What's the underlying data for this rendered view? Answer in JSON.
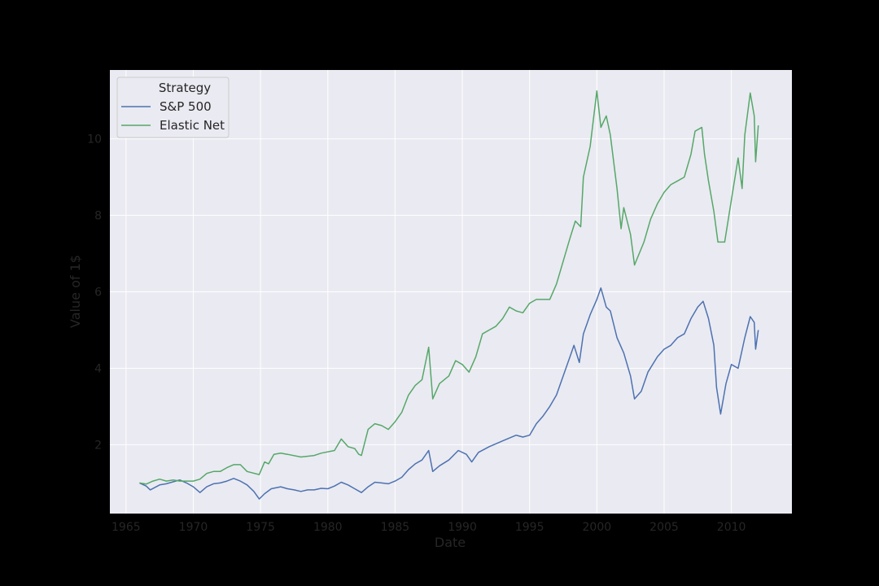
{
  "chart_data": {
    "type": "line",
    "title": "",
    "xlabel": "Date",
    "ylabel": "Value of 1$",
    "xlim": [
      1963.8,
      2014.5
    ],
    "ylim": [
      0.2,
      11.8
    ],
    "x_ticks": [
      1965,
      1970,
      1975,
      1980,
      1985,
      1990,
      1995,
      2000,
      2005,
      2010
    ],
    "y_ticks": [
      2,
      4,
      6,
      8,
      10
    ],
    "grid": true,
    "legend": {
      "title": "Strategy",
      "placement": "top-left"
    },
    "colors": {
      "background": "#000000",
      "plot_area": "#EAEAF2",
      "grid": "#FFFFFF",
      "axis_text": "#262626"
    },
    "series": [
      {
        "name": "S&P 500",
        "color": "#4C72B0",
        "points": [
          [
            1966.0,
            1.0
          ],
          [
            1966.5,
            0.92
          ],
          [
            1966.8,
            0.82
          ],
          [
            1967.5,
            0.95
          ],
          [
            1968.0,
            0.98
          ],
          [
            1968.5,
            1.03
          ],
          [
            1969.0,
            1.08
          ],
          [
            1969.5,
            1.0
          ],
          [
            1970.0,
            0.9
          ],
          [
            1970.5,
            0.75
          ],
          [
            1971.0,
            0.9
          ],
          [
            1971.5,
            0.98
          ],
          [
            1972.0,
            1.0
          ],
          [
            1972.5,
            1.05
          ],
          [
            1973.0,
            1.12
          ],
          [
            1973.5,
            1.05
          ],
          [
            1974.0,
            0.95
          ],
          [
            1974.5,
            0.78
          ],
          [
            1974.9,
            0.58
          ],
          [
            1975.3,
            0.72
          ],
          [
            1975.8,
            0.85
          ],
          [
            1976.5,
            0.9
          ],
          [
            1977.0,
            0.85
          ],
          [
            1977.5,
            0.82
          ],
          [
            1978.0,
            0.78
          ],
          [
            1978.5,
            0.82
          ],
          [
            1979.0,
            0.82
          ],
          [
            1979.5,
            0.86
          ],
          [
            1980.0,
            0.85
          ],
          [
            1980.5,
            0.92
          ],
          [
            1981.0,
            1.02
          ],
          [
            1981.5,
            0.95
          ],
          [
            1982.0,
            0.85
          ],
          [
            1982.5,
            0.75
          ],
          [
            1983.0,
            0.9
          ],
          [
            1983.5,
            1.02
          ],
          [
            1984.0,
            1.0
          ],
          [
            1984.5,
            0.98
          ],
          [
            1985.0,
            1.05
          ],
          [
            1985.5,
            1.15
          ],
          [
            1986.0,
            1.35
          ],
          [
            1986.5,
            1.5
          ],
          [
            1987.0,
            1.6
          ],
          [
            1987.5,
            1.85
          ],
          [
            1987.8,
            1.3
          ],
          [
            1988.3,
            1.45
          ],
          [
            1989.0,
            1.6
          ],
          [
            1989.7,
            1.85
          ],
          [
            1990.3,
            1.75
          ],
          [
            1990.7,
            1.55
          ],
          [
            1991.2,
            1.8
          ],
          [
            1992.0,
            1.95
          ],
          [
            1993.0,
            2.1
          ],
          [
            1994.0,
            2.25
          ],
          [
            1994.5,
            2.2
          ],
          [
            1995.0,
            2.25
          ],
          [
            1995.5,
            2.55
          ],
          [
            1996.0,
            2.75
          ],
          [
            1996.5,
            3.0
          ],
          [
            1997.0,
            3.3
          ],
          [
            1997.5,
            3.8
          ],
          [
            1998.0,
            4.3
          ],
          [
            1998.3,
            4.6
          ],
          [
            1998.7,
            4.15
          ],
          [
            1999.0,
            4.9
          ],
          [
            1999.5,
            5.4
          ],
          [
            2000.0,
            5.8
          ],
          [
            2000.3,
            6.1
          ],
          [
            2000.7,
            5.6
          ],
          [
            2001.0,
            5.5
          ],
          [
            2001.5,
            4.8
          ],
          [
            2002.0,
            4.4
          ],
          [
            2002.5,
            3.8
          ],
          [
            2002.8,
            3.2
          ],
          [
            2003.3,
            3.4
          ],
          [
            2003.8,
            3.9
          ],
          [
            2004.5,
            4.3
          ],
          [
            2005.0,
            4.5
          ],
          [
            2005.5,
            4.6
          ],
          [
            2006.0,
            4.8
          ],
          [
            2006.5,
            4.9
          ],
          [
            2007.0,
            5.3
          ],
          [
            2007.5,
            5.6
          ],
          [
            2007.9,
            5.75
          ],
          [
            2008.3,
            5.3
          ],
          [
            2008.7,
            4.6
          ],
          [
            2008.9,
            3.5
          ],
          [
            2009.2,
            2.8
          ],
          [
            2009.6,
            3.6
          ],
          [
            2010.0,
            4.1
          ],
          [
            2010.5,
            4.0
          ],
          [
            2011.0,
            4.8
          ],
          [
            2011.4,
            5.35
          ],
          [
            2011.7,
            5.2
          ],
          [
            2011.8,
            4.5
          ],
          [
            2012.0,
            5.0
          ]
        ]
      },
      {
        "name": "Elastic Net",
        "color": "#55A868",
        "points": [
          [
            1966.0,
            1.0
          ],
          [
            1966.5,
            0.97
          ],
          [
            1967.0,
            1.05
          ],
          [
            1967.5,
            1.1
          ],
          [
            1968.0,
            1.05
          ],
          [
            1968.5,
            1.08
          ],
          [
            1969.0,
            1.05
          ],
          [
            1969.5,
            1.05
          ],
          [
            1970.0,
            1.05
          ],
          [
            1970.5,
            1.1
          ],
          [
            1971.0,
            1.25
          ],
          [
            1971.5,
            1.3
          ],
          [
            1972.0,
            1.3
          ],
          [
            1972.5,
            1.4
          ],
          [
            1973.0,
            1.48
          ],
          [
            1973.5,
            1.48
          ],
          [
            1974.0,
            1.3
          ],
          [
            1974.9,
            1.22
          ],
          [
            1975.3,
            1.55
          ],
          [
            1975.6,
            1.5
          ],
          [
            1976.0,
            1.75
          ],
          [
            1976.5,
            1.78
          ],
          [
            1977.0,
            1.75
          ],
          [
            1978.0,
            1.68
          ],
          [
            1979.0,
            1.72
          ],
          [
            1979.5,
            1.78
          ],
          [
            1980.5,
            1.85
          ],
          [
            1981.0,
            2.15
          ],
          [
            1981.5,
            1.95
          ],
          [
            1982.0,
            1.9
          ],
          [
            1982.3,
            1.75
          ],
          [
            1982.5,
            1.72
          ],
          [
            1983.0,
            2.4
          ],
          [
            1983.5,
            2.55
          ],
          [
            1984.0,
            2.5
          ],
          [
            1984.5,
            2.4
          ],
          [
            1985.0,
            2.6
          ],
          [
            1985.5,
            2.85
          ],
          [
            1986.0,
            3.3
          ],
          [
            1986.5,
            3.55
          ],
          [
            1987.0,
            3.7
          ],
          [
            1987.5,
            4.55
          ],
          [
            1987.8,
            3.2
          ],
          [
            1988.3,
            3.6
          ],
          [
            1989.0,
            3.8
          ],
          [
            1989.5,
            4.2
          ],
          [
            1990.0,
            4.1
          ],
          [
            1990.5,
            3.9
          ],
          [
            1991.0,
            4.3
          ],
          [
            1991.5,
            4.9
          ],
          [
            1992.0,
            5.0
          ],
          [
            1992.5,
            5.1
          ],
          [
            1993.0,
            5.3
          ],
          [
            1993.5,
            5.6
          ],
          [
            1994.0,
            5.5
          ],
          [
            1994.5,
            5.45
          ],
          [
            1995.0,
            5.7
          ],
          [
            1995.5,
            5.8
          ],
          [
            1996.5,
            5.8
          ],
          [
            1997.0,
            6.2
          ],
          [
            1997.5,
            6.8
          ],
          [
            1998.0,
            7.4
          ],
          [
            1998.4,
            7.85
          ],
          [
            1998.8,
            7.7
          ],
          [
            1999.0,
            9.0
          ],
          [
            1999.5,
            9.8
          ],
          [
            2000.0,
            11.25
          ],
          [
            2000.3,
            10.3
          ],
          [
            2000.7,
            10.6
          ],
          [
            2001.0,
            10.1
          ],
          [
            2001.5,
            8.7
          ],
          [
            2001.8,
            7.65
          ],
          [
            2002.0,
            8.2
          ],
          [
            2002.5,
            7.5
          ],
          [
            2002.8,
            6.7
          ],
          [
            2003.5,
            7.3
          ],
          [
            2004.0,
            7.9
          ],
          [
            2004.5,
            8.3
          ],
          [
            2005.0,
            8.6
          ],
          [
            2005.5,
            8.8
          ],
          [
            2006.0,
            8.9
          ],
          [
            2006.5,
            9.0
          ],
          [
            2007.0,
            9.6
          ],
          [
            2007.3,
            10.2
          ],
          [
            2007.8,
            10.3
          ],
          [
            2008.0,
            9.6
          ],
          [
            2008.3,
            8.9
          ],
          [
            2008.7,
            8.1
          ],
          [
            2009.0,
            7.3
          ],
          [
            2009.5,
            7.3
          ],
          [
            2010.0,
            8.4
          ],
          [
            2010.5,
            9.5
          ],
          [
            2010.8,
            8.7
          ],
          [
            2011.0,
            10.1
          ],
          [
            2011.4,
            11.2
          ],
          [
            2011.7,
            10.6
          ],
          [
            2011.8,
            9.4
          ],
          [
            2012.0,
            10.35
          ]
        ]
      }
    ]
  }
}
